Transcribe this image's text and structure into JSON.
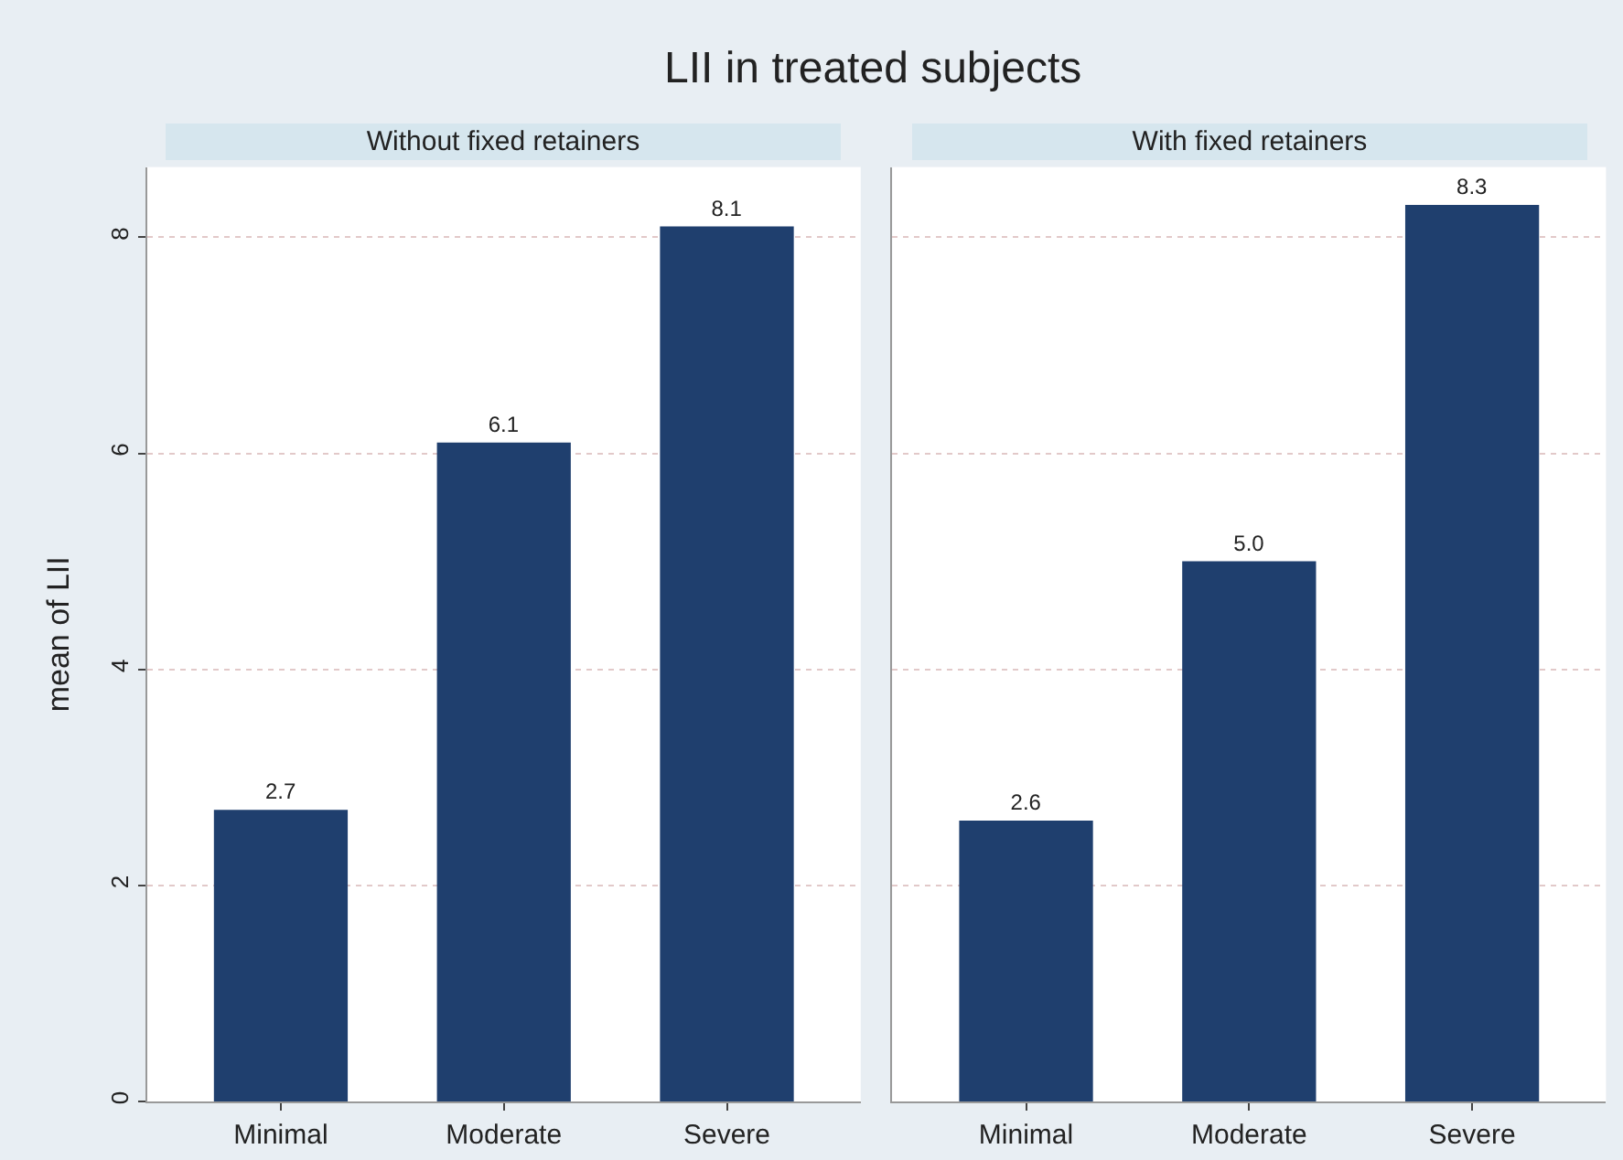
{
  "chart_data": [
    {
      "type": "bar",
      "title": "LII in treated subjects",
      "subtitle": "Without fixed retainers",
      "ylabel": "mean of LII",
      "categories": [
        "Minimal",
        "Moderate",
        "Severe"
      ],
      "values": [
        2.7,
        6.1,
        8.1
      ],
      "color": "#1f3f6e",
      "data_labels": true,
      "ylim": [
        0,
        8.65
      ],
      "yticks": [
        0,
        2,
        4,
        6,
        8
      ],
      "grid": "y"
    },
    {
      "type": "bar",
      "subtitle": "With fixed retainers",
      "categories": [
        "Minimal",
        "Moderate",
        "Severe"
      ],
      "values": [
        2.6,
        5.0,
        8.3
      ],
      "value_labels": [
        "2.6",
        "5.0",
        "8.3"
      ],
      "color": "#1f3f6e",
      "data_labels": true,
      "ylim": [
        0,
        8.65
      ],
      "yticks": [
        0,
        2,
        4,
        6,
        8
      ],
      "grid": "y",
      "tick_labels": "x"
    }
  ]
}
